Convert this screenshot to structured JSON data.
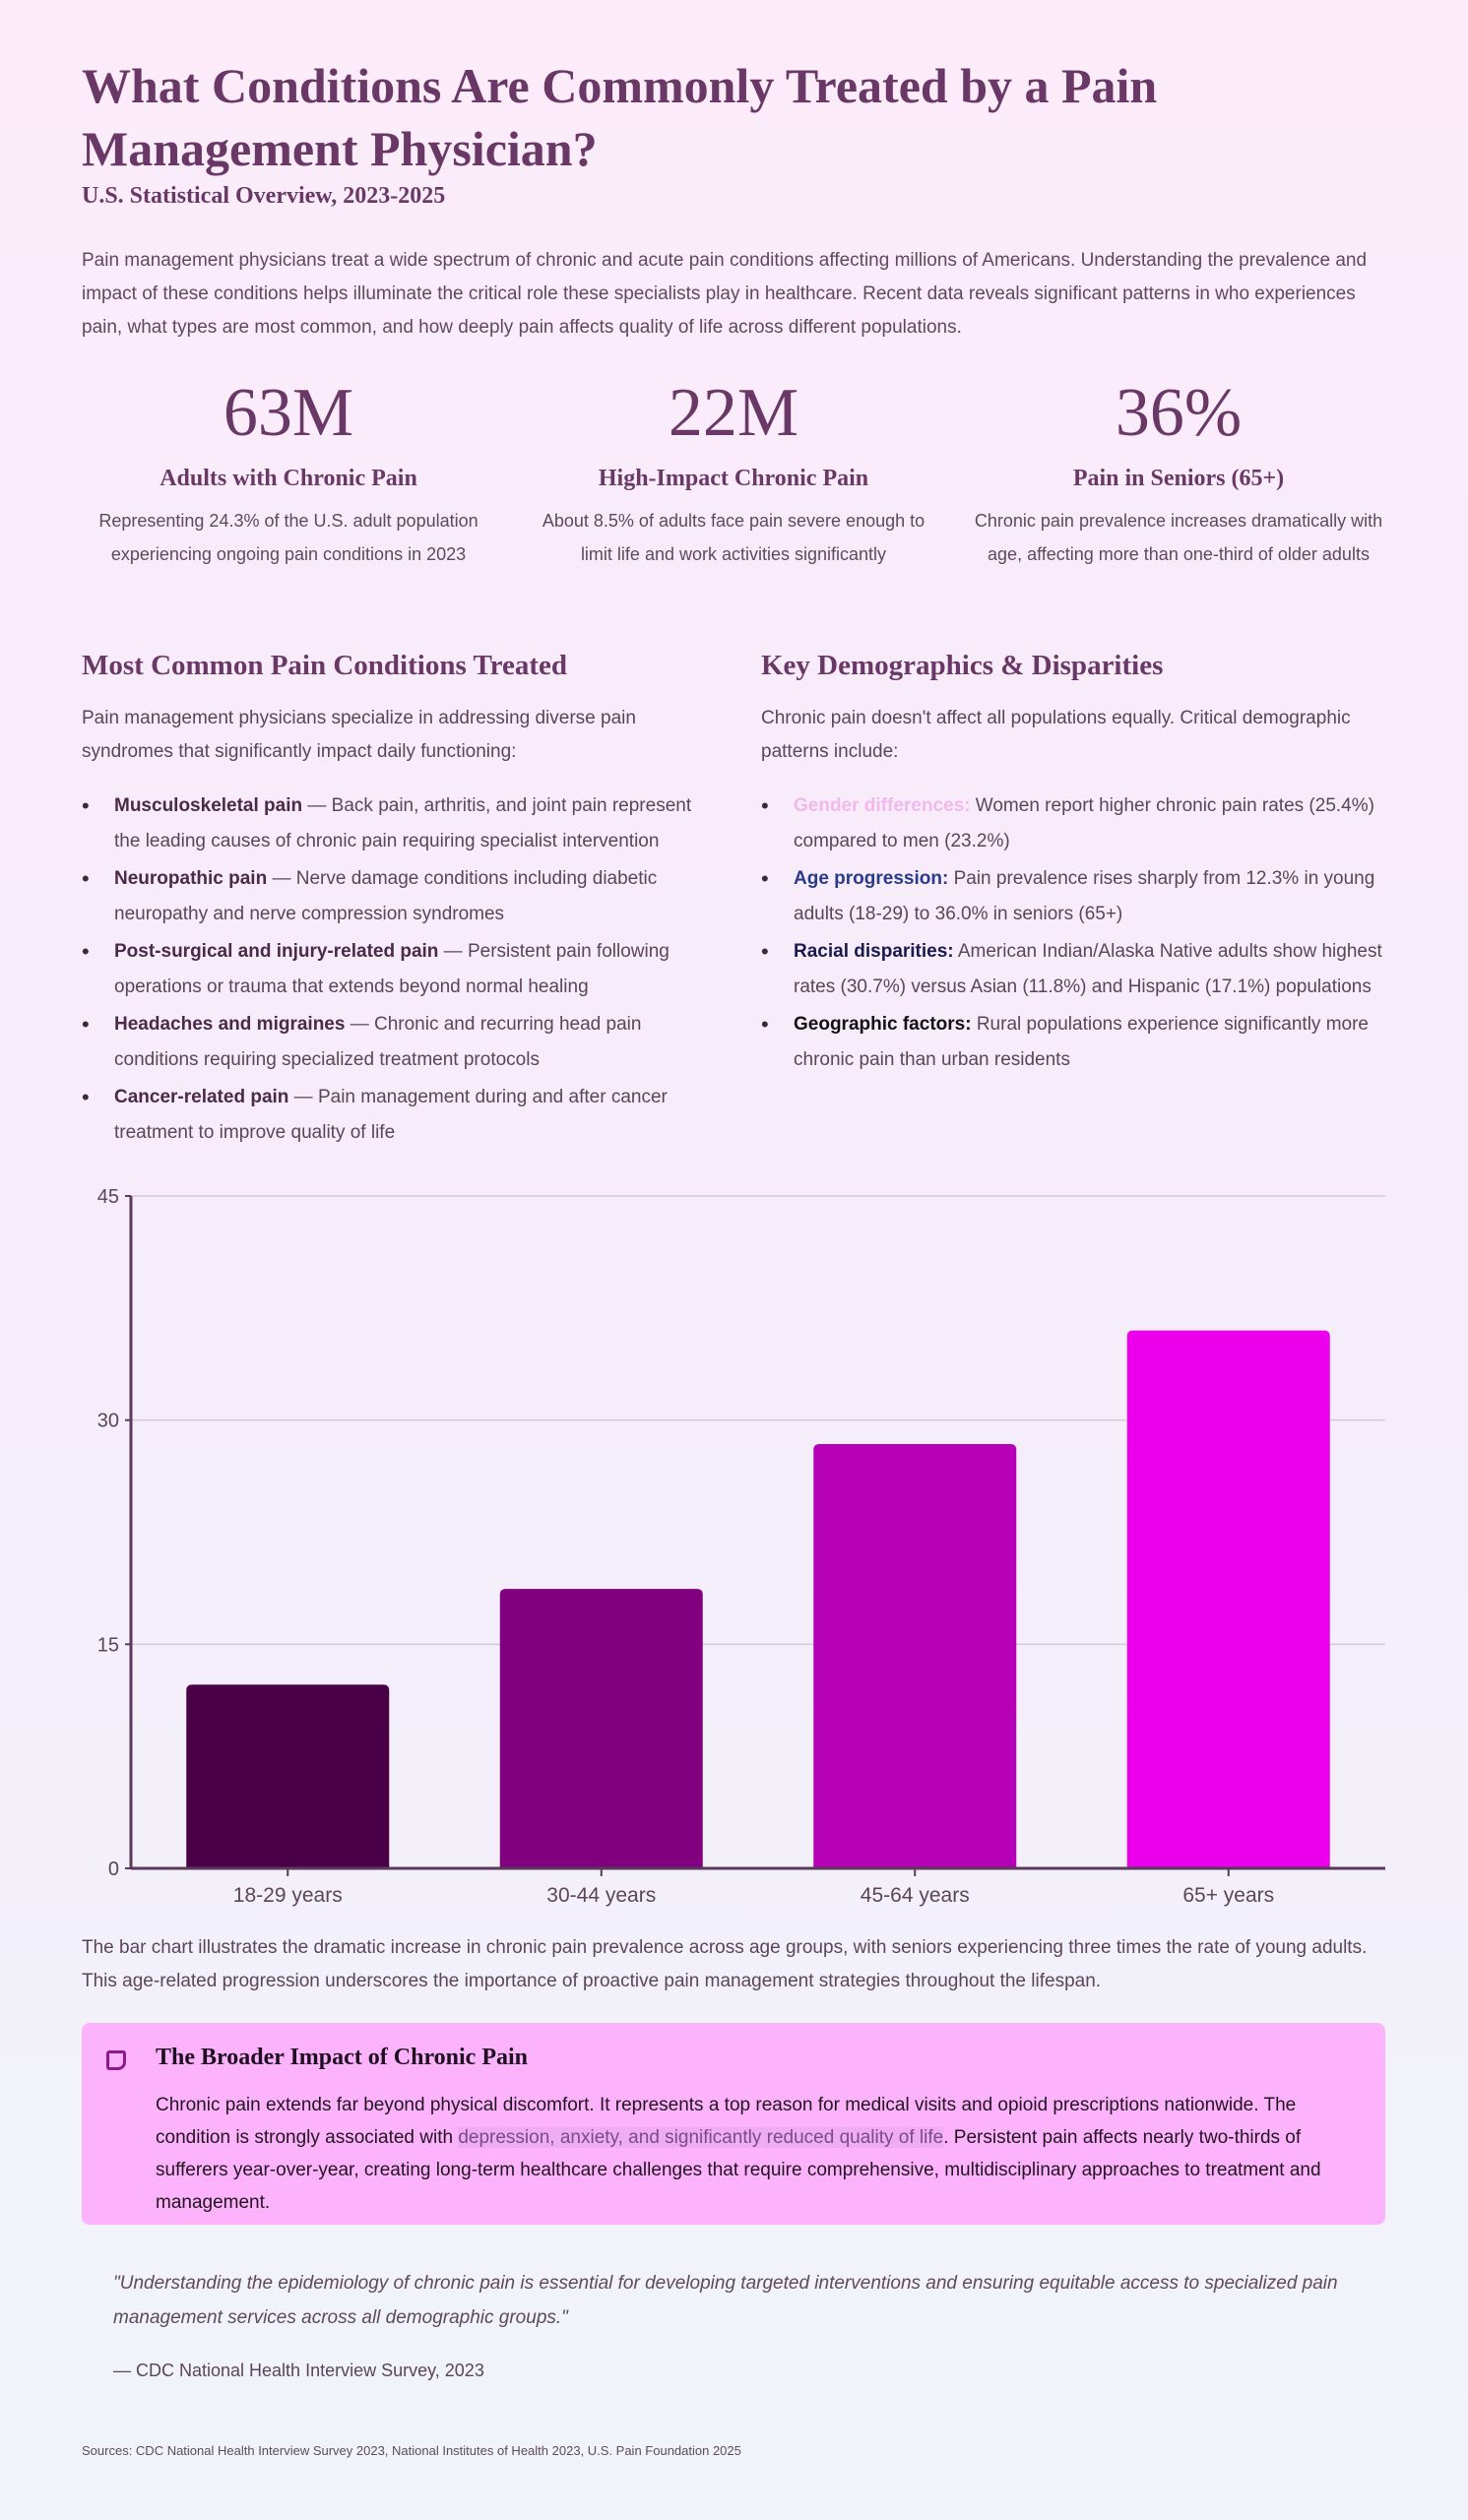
{
  "header": {
    "title": "What Conditions Are Commonly Treated by a Pain Management Physician?",
    "subtitle": "U.S. Statistical Overview, 2023-2025"
  },
  "intro": "Pain management physicians treat a wide spectrum of chronic and acute pain conditions affecting millions of Americans. Understanding the prevalence and impact of these conditions helps illuminate the critical role these specialists play in healthcare. Recent data reveals significant patterns in who experiences pain, what types are most common, and how deeply pain affects quality of life across different populations.",
  "stats": [
    {
      "value": "63M",
      "label": "Adults with Chronic Pain",
      "desc": "Representing 24.3% of the U.S. adult population experiencing ongoing pain conditions in 2023"
    },
    {
      "value": "22M",
      "label": "High-Impact Chronic Pain",
      "desc": "About 8.5% of adults face pain severe enough to limit life and work activities significantly"
    },
    {
      "value": "36%",
      "label": "Pain in Seniors (65+)",
      "desc": "Chronic pain prevalence increases dramatically with age, affecting more than one-third of older adults"
    }
  ],
  "conditions": {
    "heading": "Most Common Pain Conditions Treated",
    "intro": "Pain management physicians specialize in addressing diverse pain syndromes that significantly impact daily functioning:",
    "items": [
      {
        "term": "Musculoskeletal pain",
        "text": " — Back pain, arthritis, and joint pain represent the leading causes of chronic pain requiring specialist intervention"
      },
      {
        "term": "Neuropathic pain",
        "text": " — Nerve damage conditions including diabetic neuropathy and nerve compression syndromes"
      },
      {
        "term": "Post-surgical and injury-related pain",
        "text": " — Persistent pain following operations or trauma that extends beyond normal healing"
      },
      {
        "term": "Headaches and migraines",
        "text": " — Chronic and recurring head pain conditions requiring specialized treatment protocols"
      },
      {
        "term": "Cancer-related pain",
        "text": " — Pain management during and after cancer treatment to improve quality of life"
      }
    ]
  },
  "demographics": {
    "heading": "Key Demographics & Disparities",
    "intro": "Chronic pain doesn't affect all populations equally. Critical demographic patterns include:",
    "items": [
      {
        "term": "Gender differences:",
        "text": " Women report higher chronic pain rates (25.4%) compared to men (23.2%)",
        "color": "#f0b8ec"
      },
      {
        "term": "Age progression:",
        "text": " Pain prevalence rises sharply from 12.3% in young adults (18-29) to 36.0% in seniors (65+)",
        "color": "#2a3a8a"
      },
      {
        "term": "Racial disparities:",
        "text": " American Indian/Alaska Native adults show highest rates (30.7%) versus Asian (11.8%) and Hispanic (17.1%) populations",
        "color": "#1a1a50"
      },
      {
        "term": "Geographic factors:",
        "text": " Rural populations experience significantly more chronic pain than urban residents",
        "color": "#111111"
      }
    ]
  },
  "chart_data": {
    "type": "bar",
    "categories": [
      "18-29 years",
      "30-44 years",
      "45-64 years",
      "65+ years"
    ],
    "values": [
      12.3,
      18.7,
      28.4,
      36.0
    ],
    "colors": [
      "#4a0046",
      "#800080",
      "#b500b5",
      "#ec00ec"
    ],
    "ylim": [
      0,
      45
    ],
    "yticks": [
      "0",
      "15",
      "30",
      "45"
    ],
    "grid": true,
    "title": "",
    "xlabel": "",
    "ylabel": ""
  },
  "caption": "The bar chart illustrates the dramatic increase in chronic pain prevalence across age groups, with seniors experiencing three times the rate of young adults. This age-related progression underscores the importance of proactive pain management strategies throughout the lifespan.",
  "callout": {
    "icon": "note-icon",
    "title": "The Broader Impact of Chronic Pain",
    "text_a": "Chronic pain extends far beyond physical discomfort. It represents a top reason for medical visits and opioid prescriptions nationwide. The condition is strongly associated with ",
    "highlight": "depression, anxiety, and significantly reduced quality of life",
    "text_b": ". Persistent pain affects nearly two-thirds of sufferers year-over-year, creating long-term healthcare challenges that require comprehensive, multidisciplinary approaches to treatment and management."
  },
  "quote": {
    "text": "\"Understanding the epidemiology of chronic pain is essential for developing targeted interventions and ensuring equitable access to specialized pain management services across all demographic groups.\"",
    "attribution": "— CDC National Health Interview Survey, 2023"
  },
  "sources": "Sources: CDC National Health Interview Survey 2023, National Institutes of Health 2023, U.S. Pain Foundation 2025"
}
